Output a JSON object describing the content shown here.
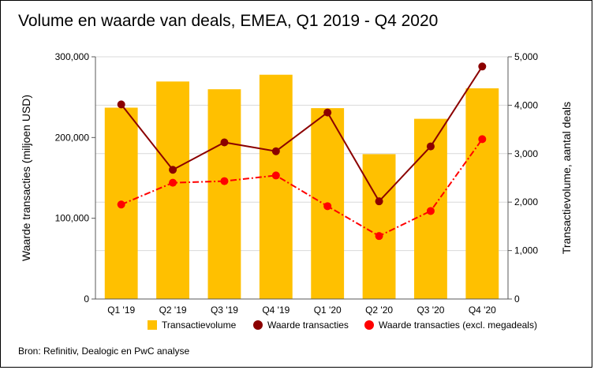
{
  "chart_data": {
    "type": "bar",
    "title": "Volume en waarde van deals, EMEA, Q1 2019 - Q4 2020",
    "categories": [
      "Q1 '19",
      "Q2 '19",
      "Q3 '19",
      "Q4 '19",
      "Q1 '20",
      "Q2 '20",
      "Q3 '20",
      "Q4 '20"
    ],
    "ylabel": "Waarde transacties (miljoen USD)",
    "ylabel_right": "Transactievolume, aantal deals",
    "ylim": [
      0,
      300000
    ],
    "ylim_right": [
      0,
      5000
    ],
    "yticks": [
      "0",
      "100,000",
      "200,000",
      "300,000"
    ],
    "yticks_right": [
      "0",
      "1,000",
      "2,000",
      "3,000",
      "4,000",
      "5,000"
    ],
    "series": [
      {
        "name": "Transactievolume",
        "type": "bar",
        "axis": "right",
        "color": "#FFC000",
        "values": [
          3950,
          4490,
          4330,
          4630,
          3940,
          2990,
          3720,
          4350
        ]
      },
      {
        "name": "Waarde transacties",
        "type": "line",
        "axis": "left",
        "color": "#8B0000",
        "style": "solid",
        "values": [
          241000,
          160000,
          194000,
          183000,
          231000,
          121000,
          189000,
          288000
        ]
      },
      {
        "name": "Waarde transacties (excl. megadeals)",
        "type": "line",
        "axis": "left",
        "color": "#FF0000",
        "style": "dash-dot",
        "values": [
          117000,
          144000,
          146000,
          153000,
          115000,
          78000,
          109000,
          198000
        ]
      }
    ],
    "grid": true,
    "legend": "bottom",
    "source": "Bron: Refinitiv, Dealogic en PwC analyse"
  }
}
